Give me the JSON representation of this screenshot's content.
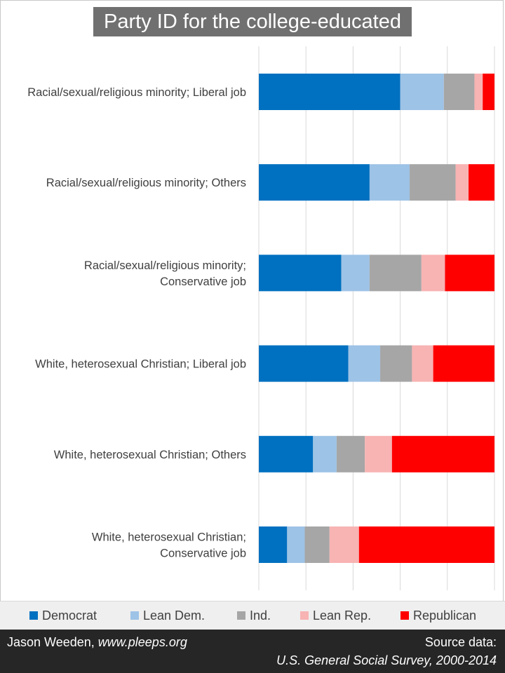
{
  "title": "Party ID for the college-educated",
  "chart_data": {
    "type": "bar",
    "orientation": "horizontal",
    "stacked": true,
    "title": "Party ID for the college-educated",
    "xlim": [
      0,
      100
    ],
    "grid": true,
    "legend_position": "bottom",
    "categories": [
      [
        "Racial/sexual/religious minority; Liberal job"
      ],
      [
        "Racial/sexual/religious minority; Others"
      ],
      [
        "Racial/sexual/religious minority;",
        "Conservative job"
      ],
      [
        "White, heterosexual Christian; Liberal job"
      ],
      [
        "White, heterosexual Christian; Others"
      ],
      [
        "White, heterosexual Christian;",
        "Conservative job"
      ]
    ],
    "series": [
      {
        "name": "Democrat",
        "color": "#0070c0",
        "values": [
          60,
          47,
          35,
          38,
          23,
          12
        ]
      },
      {
        "name": "Lean Dem.",
        "color": "#9dc3e6",
        "values": [
          18.5,
          17,
          12,
          13.5,
          10,
          7.5
        ]
      },
      {
        "name": "Ind.",
        "color": "#a6a6a6",
        "values": [
          13,
          19.5,
          22,
          13.5,
          12,
          10.5
        ]
      },
      {
        "name": "Lean Rep.",
        "color": "#f8b3b3",
        "values": [
          3.5,
          5.5,
          10,
          9,
          11.5,
          12.5
        ]
      },
      {
        "name": "Republican",
        "color": "#ff0000",
        "values": [
          5,
          11,
          21,
          26,
          43.5,
          57.5
        ]
      }
    ]
  },
  "footer": {
    "author": "Jason Weeden, ",
    "site": "www.pleeps.org",
    "source_label": "Source data:",
    "source_name": "U.S. General Social Survey, 2000-2014"
  }
}
